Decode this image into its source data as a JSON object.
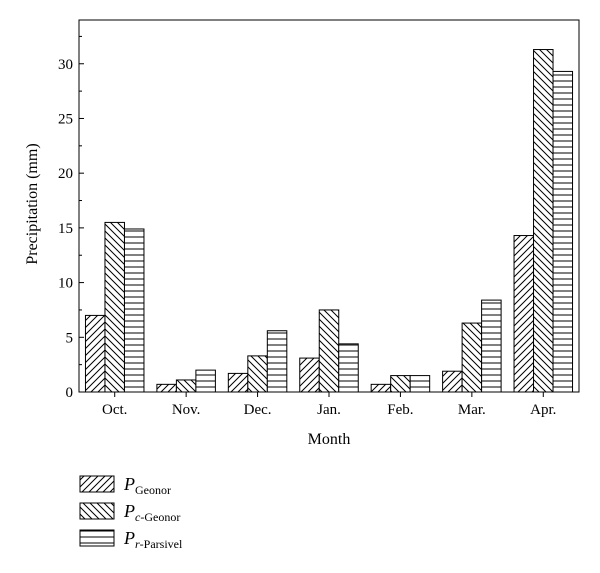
{
  "chart_data": {
    "type": "bar",
    "title": "",
    "xlabel": "Month",
    "ylabel": "Precipitation (mm)",
    "ylim": [
      0,
      34
    ],
    "yticks": [
      0,
      5,
      10,
      15,
      20,
      25,
      30
    ],
    "grid": false,
    "legend_position": "bottom-left",
    "categories": [
      "Oct.",
      "Nov.",
      "Dec.",
      "Jan.",
      "Feb.",
      "Mar.",
      "Apr."
    ],
    "series": [
      {
        "name": "P_Geonor",
        "legend": {
          "main": "P",
          "sub": "Geonor",
          "sub_italic_prefix": ""
        },
        "pattern": "diagonal-up",
        "values": [
          7.0,
          0.7,
          1.7,
          3.1,
          0.7,
          1.9,
          14.3
        ]
      },
      {
        "name": "P_c-Geonor",
        "legend": {
          "main": "P",
          "sub": "-Geonor",
          "sub_italic_prefix": "c"
        },
        "pattern": "diagonal-down",
        "values": [
          15.5,
          1.1,
          3.3,
          7.5,
          1.5,
          6.3,
          31.3
        ]
      },
      {
        "name": "P_r-Parsivel",
        "legend": {
          "main": "P",
          "sub": "-Parsivel",
          "sub_italic_prefix": "r"
        },
        "pattern": "horizontal",
        "values": [
          14.9,
          2.0,
          5.6,
          4.4,
          1.5,
          8.4,
          29.3
        ]
      }
    ]
  }
}
